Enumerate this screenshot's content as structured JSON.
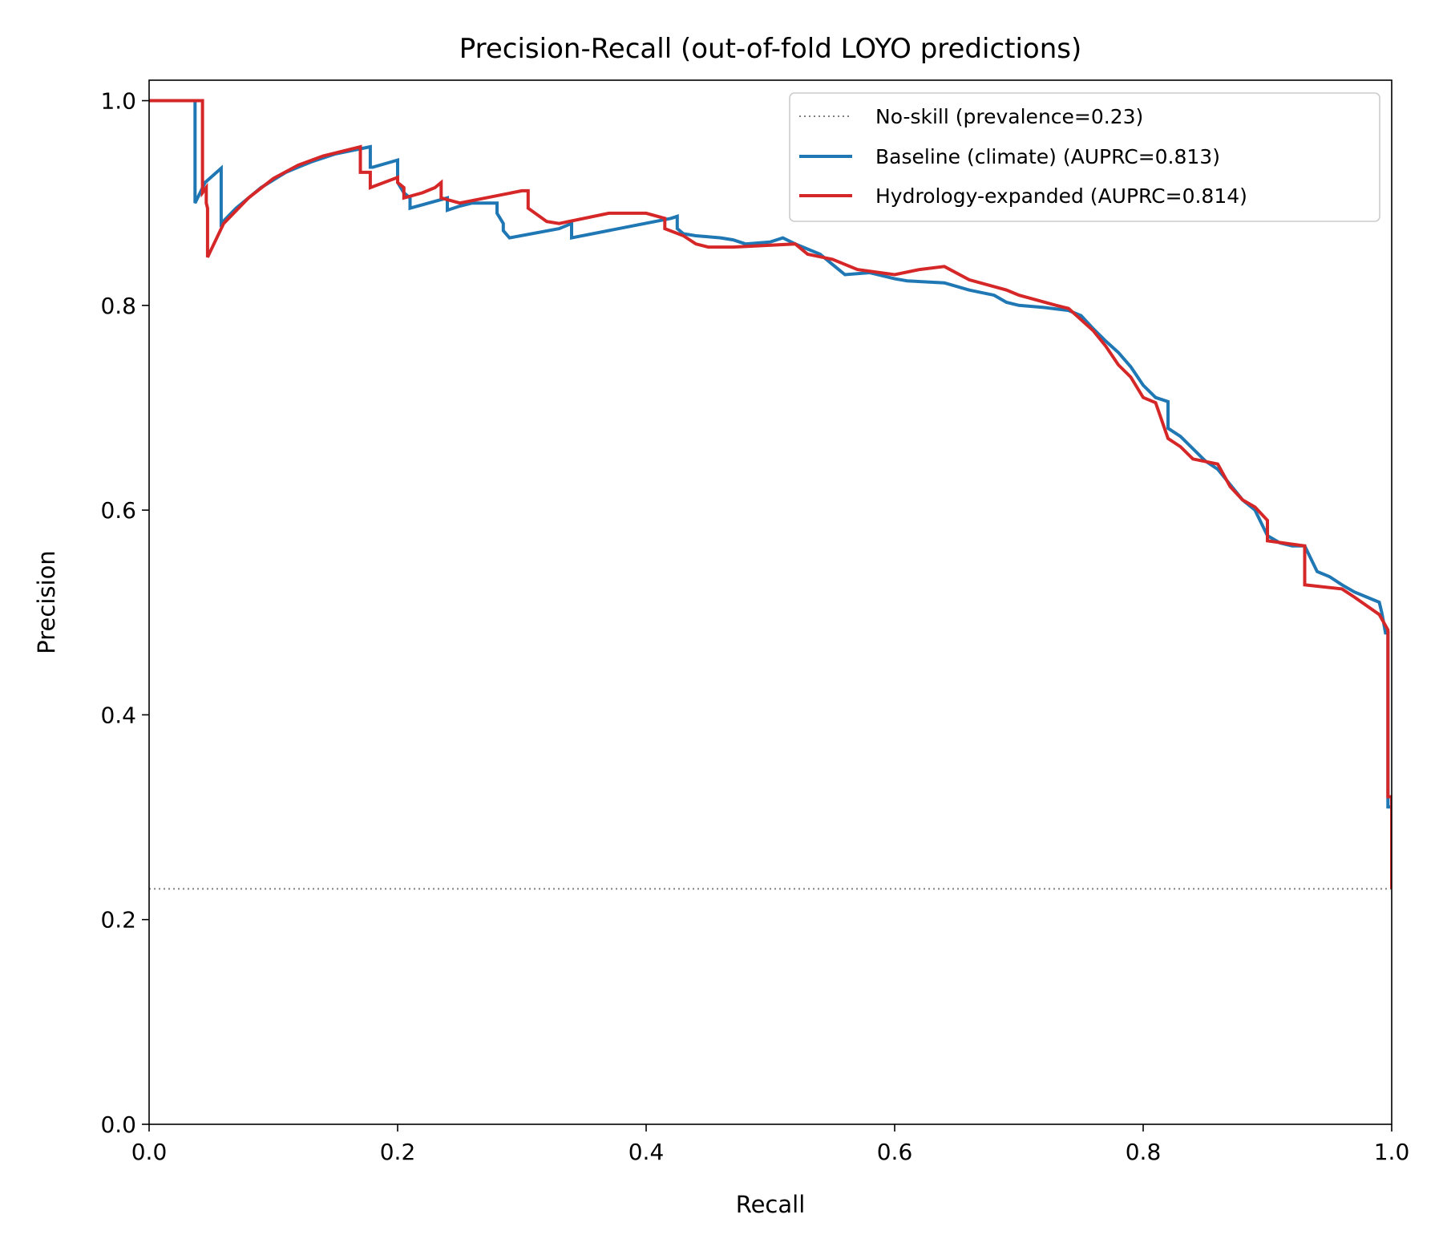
{
  "chart_data": {
    "type": "line",
    "title": "Precision-Recall (out-of-fold LOYO predictions)",
    "xlabel": "Recall",
    "ylabel": "Precision",
    "xlim": [
      0,
      1
    ],
    "ylim": [
      0,
      1.02
    ],
    "xticks": [
      "0.0",
      "0.2",
      "0.4",
      "0.6",
      "0.8",
      "1.0"
    ],
    "yticks": [
      "0.0",
      "0.2",
      "0.4",
      "0.6",
      "0.8",
      "1.0"
    ],
    "grid": false,
    "legend_position": "top-right",
    "legend": [
      {
        "label": "No-skill (prevalence=0.23)",
        "color": "#808080",
        "style": "dotted"
      },
      {
        "label": "Baseline (climate) (AUPRC=0.813)",
        "color": "#1f77b4",
        "style": "solid"
      },
      {
        "label": "Hydrology-expanded (AUPRC=0.814)",
        "color": "#d62728",
        "style": "solid"
      }
    ],
    "series": [
      {
        "name": "No-skill (prevalence=0.23)",
        "color": "#808080",
        "style": "dotted",
        "x": [
          0,
          1
        ],
        "y": [
          0.23,
          0.23
        ]
      },
      {
        "name": "Baseline (climate) (AUPRC=0.813)",
        "color": "#1f77b4",
        "style": "solid",
        "x": [
          0,
          0.037,
          0.037,
          0.045,
          0.058,
          0.058,
          0.07,
          0.09,
          0.11,
          0.13,
          0.15,
          0.178,
          0.178,
          0.18,
          0.2,
          0.2,
          0.205,
          0.21,
          0.21,
          0.24,
          0.24,
          0.25,
          0.26,
          0.275,
          0.28,
          0.28,
          0.285,
          0.285,
          0.29,
          0.33,
          0.34,
          0.34,
          0.42,
          0.425,
          0.425,
          0.43,
          0.44,
          0.45,
          0.46,
          0.47,
          0.48,
          0.5,
          0.51,
          0.52,
          0.53,
          0.54,
          0.55,
          0.56,
          0.58,
          0.6,
          0.61,
          0.64,
          0.66,
          0.68,
          0.69,
          0.7,
          0.72,
          0.74,
          0.75,
          0.76,
          0.77,
          0.78,
          0.79,
          0.8,
          0.81,
          0.82,
          0.82,
          0.83,
          0.84,
          0.85,
          0.86,
          0.87,
          0.88,
          0.89,
          0.9,
          0.91,
          0.92,
          0.93,
          0.94,
          0.95,
          0.96,
          0.97,
          0.98,
          0.99,
          0.992,
          0.995,
          0.997,
          0.997,
          1.0,
          1.0
        ],
        "y": [
          1.0,
          1.0,
          0.9,
          0.92,
          0.934,
          0.88,
          0.895,
          0.915,
          0.93,
          0.94,
          0.948,
          0.955,
          0.935,
          0.935,
          0.942,
          0.92,
          0.91,
          0.905,
          0.895,
          0.905,
          0.893,
          0.897,
          0.9,
          0.9,
          0.9,
          0.89,
          0.88,
          0.873,
          0.866,
          0.875,
          0.88,
          0.866,
          0.885,
          0.887,
          0.875,
          0.87,
          0.868,
          0.867,
          0.866,
          0.864,
          0.86,
          0.862,
          0.866,
          0.86,
          0.855,
          0.85,
          0.84,
          0.83,
          0.832,
          0.826,
          0.824,
          0.822,
          0.815,
          0.81,
          0.803,
          0.8,
          0.798,
          0.795,
          0.79,
          0.777,
          0.765,
          0.754,
          0.74,
          0.722,
          0.71,
          0.706,
          0.68,
          0.672,
          0.66,
          0.648,
          0.64,
          0.625,
          0.61,
          0.6,
          0.575,
          0.568,
          0.565,
          0.565,
          0.54,
          0.535,
          0.527,
          0.52,
          0.515,
          0.51,
          0.5,
          0.48,
          0.48,
          0.31,
          0.31,
          0.23
        ]
      },
      {
        "name": "Hydrology-expanded (AUPRC=0.814)",
        "color": "#d62728",
        "style": "solid",
        "x": [
          0,
          0.043,
          0.043,
          0.046,
          0.046,
          0.047,
          0.047,
          0.06,
          0.08,
          0.1,
          0.12,
          0.14,
          0.17,
          0.17,
          0.178,
          0.178,
          0.2,
          0.2,
          0.205,
          0.205,
          0.22,
          0.23,
          0.235,
          0.235,
          0.25,
          0.3,
          0.305,
          0.305,
          0.32,
          0.33,
          0.37,
          0.4,
          0.415,
          0.415,
          0.43,
          0.44,
          0.45,
          0.47,
          0.52,
          0.53,
          0.55,
          0.57,
          0.6,
          0.62,
          0.64,
          0.66,
          0.69,
          0.7,
          0.73,
          0.74,
          0.76,
          0.77,
          0.78,
          0.79,
          0.8,
          0.81,
          0.82,
          0.83,
          0.84,
          0.86,
          0.87,
          0.88,
          0.89,
          0.9,
          0.9,
          0.93,
          0.93,
          0.96,
          0.97,
          0.99,
          0.997,
          0.997,
          1.0,
          1.0
        ],
        "y": [
          1.0,
          1.0,
          0.91,
          0.915,
          0.9,
          0.895,
          0.847,
          0.88,
          0.905,
          0.924,
          0.937,
          0.946,
          0.955,
          0.93,
          0.93,
          0.915,
          0.925,
          0.92,
          0.915,
          0.905,
          0.91,
          0.915,
          0.92,
          0.905,
          0.9,
          0.912,
          0.912,
          0.895,
          0.882,
          0.88,
          0.89,
          0.89,
          0.885,
          0.875,
          0.868,
          0.86,
          0.857,
          0.857,
          0.86,
          0.85,
          0.845,
          0.835,
          0.83,
          0.835,
          0.838,
          0.825,
          0.815,
          0.81,
          0.8,
          0.797,
          0.775,
          0.76,
          0.742,
          0.73,
          0.71,
          0.705,
          0.67,
          0.662,
          0.65,
          0.645,
          0.623,
          0.61,
          0.603,
          0.59,
          0.57,
          0.565,
          0.527,
          0.523,
          0.515,
          0.498,
          0.483,
          0.32,
          0.32,
          0.23
        ]
      }
    ]
  }
}
